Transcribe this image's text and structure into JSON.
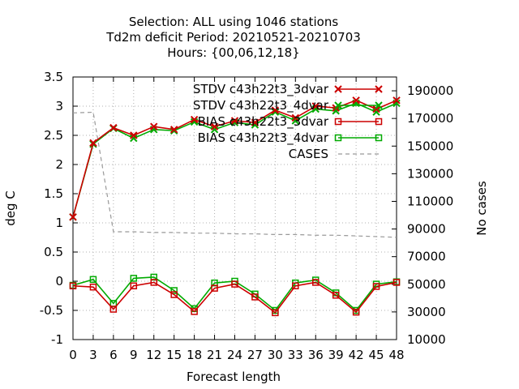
{
  "chart_data": {
    "type": "line",
    "title_lines": [
      "Selection: ALL using  1046 stations",
      "Td2m deficit   Period: 20210521-20210703",
      "Hours: {00,06,12,18}"
    ],
    "xlabel": "Forecast length",
    "ylabel": "deg C",
    "y2label": "No cases",
    "x": [
      0,
      3,
      6,
      9,
      12,
      15,
      18,
      21,
      24,
      27,
      30,
      33,
      36,
      39,
      42,
      45,
      48
    ],
    "xlim": [
      0,
      48
    ],
    "ylim": [
      -1,
      3.5
    ],
    "y2lim": [
      10000,
      200000
    ],
    "yticks": [
      "-1",
      "-0.5",
      "0",
      "0.5",
      "1",
      "1.5",
      "2",
      "2.5",
      "3",
      "3.5"
    ],
    "y2ticks": [
      "10000",
      "30000",
      "50000",
      "70000",
      "90000",
      "110000",
      "130000",
      "150000",
      "170000",
      "190000"
    ],
    "xticks": [
      "0",
      "3",
      "6",
      "9",
      "12",
      "15",
      "18",
      "21",
      "24",
      "27",
      "30",
      "33",
      "36",
      "39",
      "42",
      "45",
      "48"
    ],
    "grid": true,
    "legend_position": "top-right",
    "series": [
      {
        "name": "STDV c43h22t3_3dvar",
        "axis": "y",
        "color": "#cc0000",
        "marker": "x",
        "values": [
          1.1,
          2.37,
          2.63,
          2.5,
          2.65,
          2.6,
          2.77,
          2.65,
          2.75,
          2.72,
          2.93,
          2.8,
          3.0,
          2.97,
          3.1,
          2.95,
          3.1
        ]
      },
      {
        "name": "STDV c43h22t3_4dvar",
        "axis": "y",
        "color": "#00aa00",
        "marker": "x",
        "values": [
          1.1,
          2.35,
          2.62,
          2.45,
          2.6,
          2.58,
          2.73,
          2.6,
          2.72,
          2.68,
          2.9,
          2.75,
          2.95,
          2.92,
          3.05,
          2.9,
          3.05
        ]
      },
      {
        "name": "BIAS c43h22t3_3dvar",
        "axis": "y",
        "color": "#cc0000",
        "marker": "square",
        "values": [
          -0.08,
          -0.1,
          -0.48,
          -0.08,
          -0.02,
          -0.23,
          -0.52,
          -0.12,
          -0.05,
          -0.27,
          -0.54,
          -0.08,
          -0.02,
          -0.24,
          -0.53,
          -0.09,
          -0.02
        ]
      },
      {
        "name": "BIAS c43h22t3_4dvar",
        "axis": "y",
        "color": "#00aa00",
        "marker": "square",
        "values": [
          -0.07,
          0.03,
          -0.38,
          0.05,
          0.07,
          -0.16,
          -0.47,
          -0.03,
          0.0,
          -0.22,
          -0.5,
          -0.03,
          0.02,
          -0.2,
          -0.5,
          -0.05,
          -0.01
        ]
      },
      {
        "name": "CASES",
        "axis": "y2",
        "color": "#999999",
        "marker": "none",
        "dashed": true,
        "values": [
          174000,
          174500,
          88000,
          88000,
          87500,
          87500,
          87000,
          87000,
          86500,
          86500,
          86000,
          86000,
          85500,
          85500,
          85000,
          84500,
          84000
        ]
      }
    ]
  }
}
